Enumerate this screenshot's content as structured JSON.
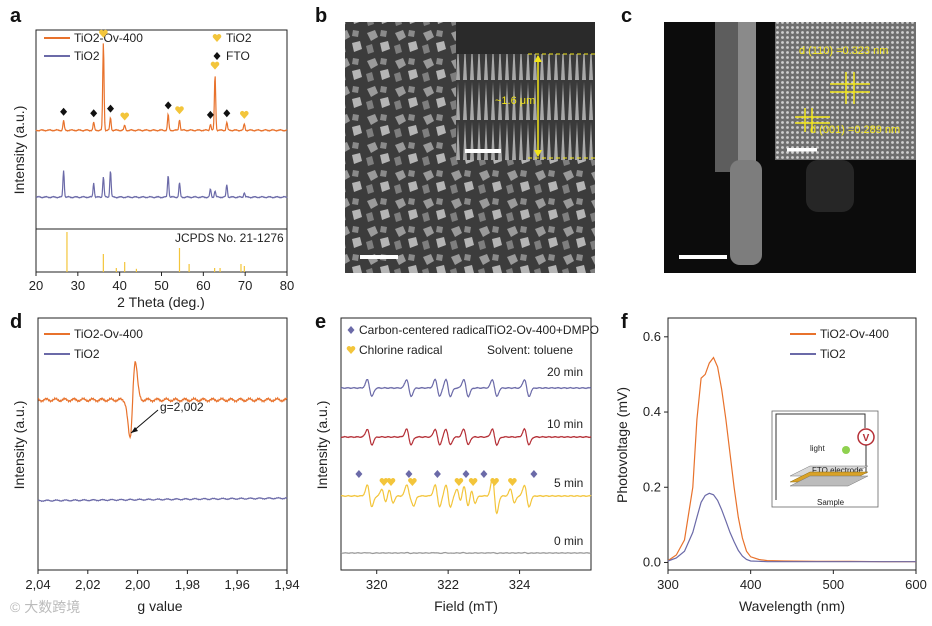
{
  "figure": {
    "colors": {
      "orange": "#e8722c",
      "purple": "#6b6aa8",
      "gold": "#f3c53b",
      "red": "#b52f36",
      "gray": "#999999",
      "black": "#111111"
    },
    "watermark": "© 大数跨境"
  },
  "chart_data": [
    {
      "id": "a",
      "panel_label": "a",
      "type": "line",
      "title": "",
      "xlabel": "2 Theta (deg.)",
      "ylabel": "Intensity (a.u.)",
      "xlim": [
        20,
        80
      ],
      "xticks": [
        "20",
        "30",
        "40",
        "50",
        "60",
        "70",
        "80"
      ],
      "legend": [
        {
          "name": "TiO2-Ov-400",
          "color": "#e8722c"
        },
        {
          "name": "TiO2",
          "color": "#6b6aa8"
        }
      ],
      "marker_legend": [
        {
          "symbol": "heart",
          "label": "TiO2",
          "color": "#f3c53b"
        },
        {
          "symbol": "diamond",
          "label": "FTO",
          "color": "#111111"
        }
      ],
      "series": [
        {
          "name": "TiO2-Ov-400",
          "color": "#e8722c",
          "baseline": 0.62,
          "peaks": [
            [
              26.6,
              0.06
            ],
            [
              33.8,
              0.05
            ],
            [
              36.1,
              0.55
            ],
            [
              37.8,
              0.08
            ],
            [
              41.2,
              0.03
            ],
            [
              51.6,
              0.1
            ],
            [
              54.3,
              0.07
            ],
            [
              61.7,
              0.04
            ],
            [
              62.8,
              0.35
            ],
            [
              65.6,
              0.05
            ],
            [
              69.8,
              0.04
            ]
          ]
        },
        {
          "name": "TiO2",
          "color": "#6b6aa8",
          "baseline": 0.2,
          "peaks": [
            [
              26.6,
              0.17
            ],
            [
              33.8,
              0.09
            ],
            [
              36.1,
              0.13
            ],
            [
              37.8,
              0.17
            ],
            [
              51.6,
              0.14
            ],
            [
              54.3,
              0.09
            ],
            [
              61.7,
              0.05
            ],
            [
              62.8,
              0.04
            ],
            [
              65.6,
              0.08
            ],
            [
              69.8,
              0.03
            ]
          ]
        }
      ],
      "markers": [
        {
          "symbol": "diamond",
          "x": [
            26.6,
            33.8,
            37.8,
            51.6,
            61.7,
            65.6
          ]
        },
        {
          "symbol": "heart",
          "x": [
            36.1,
            41.2,
            54.3,
            62.8,
            69.8
          ]
        }
      ],
      "reference": {
        "label": "JCPDS No. 21-1276",
        "sticks": [
          [
            27.4,
            1.0
          ],
          [
            36.1,
            0.45
          ],
          [
            39.2,
            0.1
          ],
          [
            41.2,
            0.25
          ],
          [
            44.0,
            0.08
          ],
          [
            54.3,
            0.6
          ],
          [
            56.6,
            0.2
          ],
          [
            62.7,
            0.1
          ],
          [
            64.0,
            0.1
          ],
          [
            69.0,
            0.2
          ],
          [
            69.8,
            0.15
          ]
        ]
      }
    },
    {
      "id": "d",
      "panel_label": "d",
      "type": "line",
      "xlabel": "g value",
      "ylabel": "Intensity (a.u.)",
      "xlim": [
        2.04,
        1.94
      ],
      "xticks": [
        "2,04",
        "2,02",
        "2,00",
        "1,98",
        "1,96",
        "1,94"
      ],
      "legend": [
        {
          "name": "TiO2-Ov-400",
          "color": "#e8722c"
        },
        {
          "name": "TiO2",
          "color": "#6b6aa8"
        }
      ],
      "annotation": {
        "text": "g=2,002",
        "g": 2.002
      },
      "series": [
        {
          "name": "TiO2-Ov-400",
          "color": "#e8722c",
          "center": 2.002,
          "amplitude": 0.45,
          "baseline": 0.35
        },
        {
          "name": "TiO2",
          "color": "#6b6aa8",
          "baseline": -0.45
        }
      ]
    },
    {
      "id": "e",
      "panel_label": "e",
      "type": "line",
      "xlabel": "Field (mT)",
      "ylabel": "Intensity (a.u.)",
      "xlim": [
        319,
        326
      ],
      "xticks": [
        "320",
        "322",
        "324"
      ],
      "legend": [
        {
          "symbol": "diamond",
          "label": "Carbon-centered radical",
          "color": "#6b6aa8"
        },
        {
          "symbol": "heart",
          "label": "Chlorine radical",
          "color": "#f3c53b"
        }
      ],
      "info": [
        "TiO2-Ov-400+DMPO",
        "Solvent: toluene"
      ],
      "series": [
        {
          "name": "20 min",
          "color": "#6b6aa8"
        },
        {
          "name": "10 min",
          "color": "#b52f36"
        },
        {
          "name": "5 min",
          "color": "#f3c53b"
        },
        {
          "name": "0 min",
          "color": "#999999"
        }
      ],
      "diamond_fields": [
        319.5,
        320.9,
        321.7,
        322.5,
        323.0,
        324.4
      ],
      "heart_fields": [
        320.2,
        320.4,
        321.0,
        322.3,
        322.7,
        323.3,
        323.8
      ]
    },
    {
      "id": "f",
      "panel_label": "f",
      "type": "line",
      "xlabel": "Wavelength (nm)",
      "ylabel": "Photovoltage (mV)",
      "xlim": [
        300,
        600
      ],
      "ylim": [
        0,
        0.65
      ],
      "xticks": [
        "300",
        "400",
        "500",
        "600"
      ],
      "yticks": [
        "0.0",
        "0.2",
        "0.4",
        "0.6"
      ],
      "legend": [
        {
          "name": "TiO2-Ov-400",
          "color": "#e8722c"
        },
        {
          "name": "TiO2",
          "color": "#6b6aa8"
        }
      ],
      "series": [
        {
          "name": "TiO2-Ov-400",
          "color": "#e8722c",
          "x": [
            300,
            310,
            320,
            330,
            335,
            340,
            345,
            350,
            355,
            360,
            365,
            370,
            375,
            380,
            385,
            390,
            395,
            400,
            410,
            420,
            440,
            480,
            520,
            560,
            600
          ],
          "y": [
            0.005,
            0.02,
            0.06,
            0.2,
            0.38,
            0.49,
            0.5,
            0.53,
            0.545,
            0.52,
            0.46,
            0.38,
            0.29,
            0.2,
            0.12,
            0.065,
            0.03,
            0.015,
            0.008,
            0.005,
            0.004,
            0.003,
            0.003,
            0.002,
            0.002
          ]
        },
        {
          "name": "TiO2",
          "color": "#6b6aa8",
          "x": [
            300,
            310,
            320,
            330,
            335,
            340,
            345,
            350,
            355,
            360,
            365,
            370,
            375,
            380,
            385,
            390,
            395,
            400,
            410,
            420,
            440,
            480,
            520,
            560,
            600
          ],
          "y": [
            0.004,
            0.012,
            0.03,
            0.08,
            0.12,
            0.16,
            0.178,
            0.184,
            0.18,
            0.165,
            0.14,
            0.11,
            0.08,
            0.055,
            0.032,
            0.017,
            0.008,
            0.004,
            0.003,
            0.002,
            0.002,
            0.002,
            0.002,
            0.002,
            0.002
          ]
        }
      ],
      "inset": {
        "light_label": "light",
        "electrode_label": "FTO electrode",
        "sample_label": "Sample",
        "meter_label": "V"
      }
    }
  ],
  "images": {
    "b": {
      "panel_label": "b",
      "inset_annotation": "~1.6 μm"
    },
    "c": {
      "panel_label": "c",
      "d_spacing_1": "d (110) =0.323 nm",
      "d_spacing_2": "d (001) =0.289 nm"
    }
  }
}
